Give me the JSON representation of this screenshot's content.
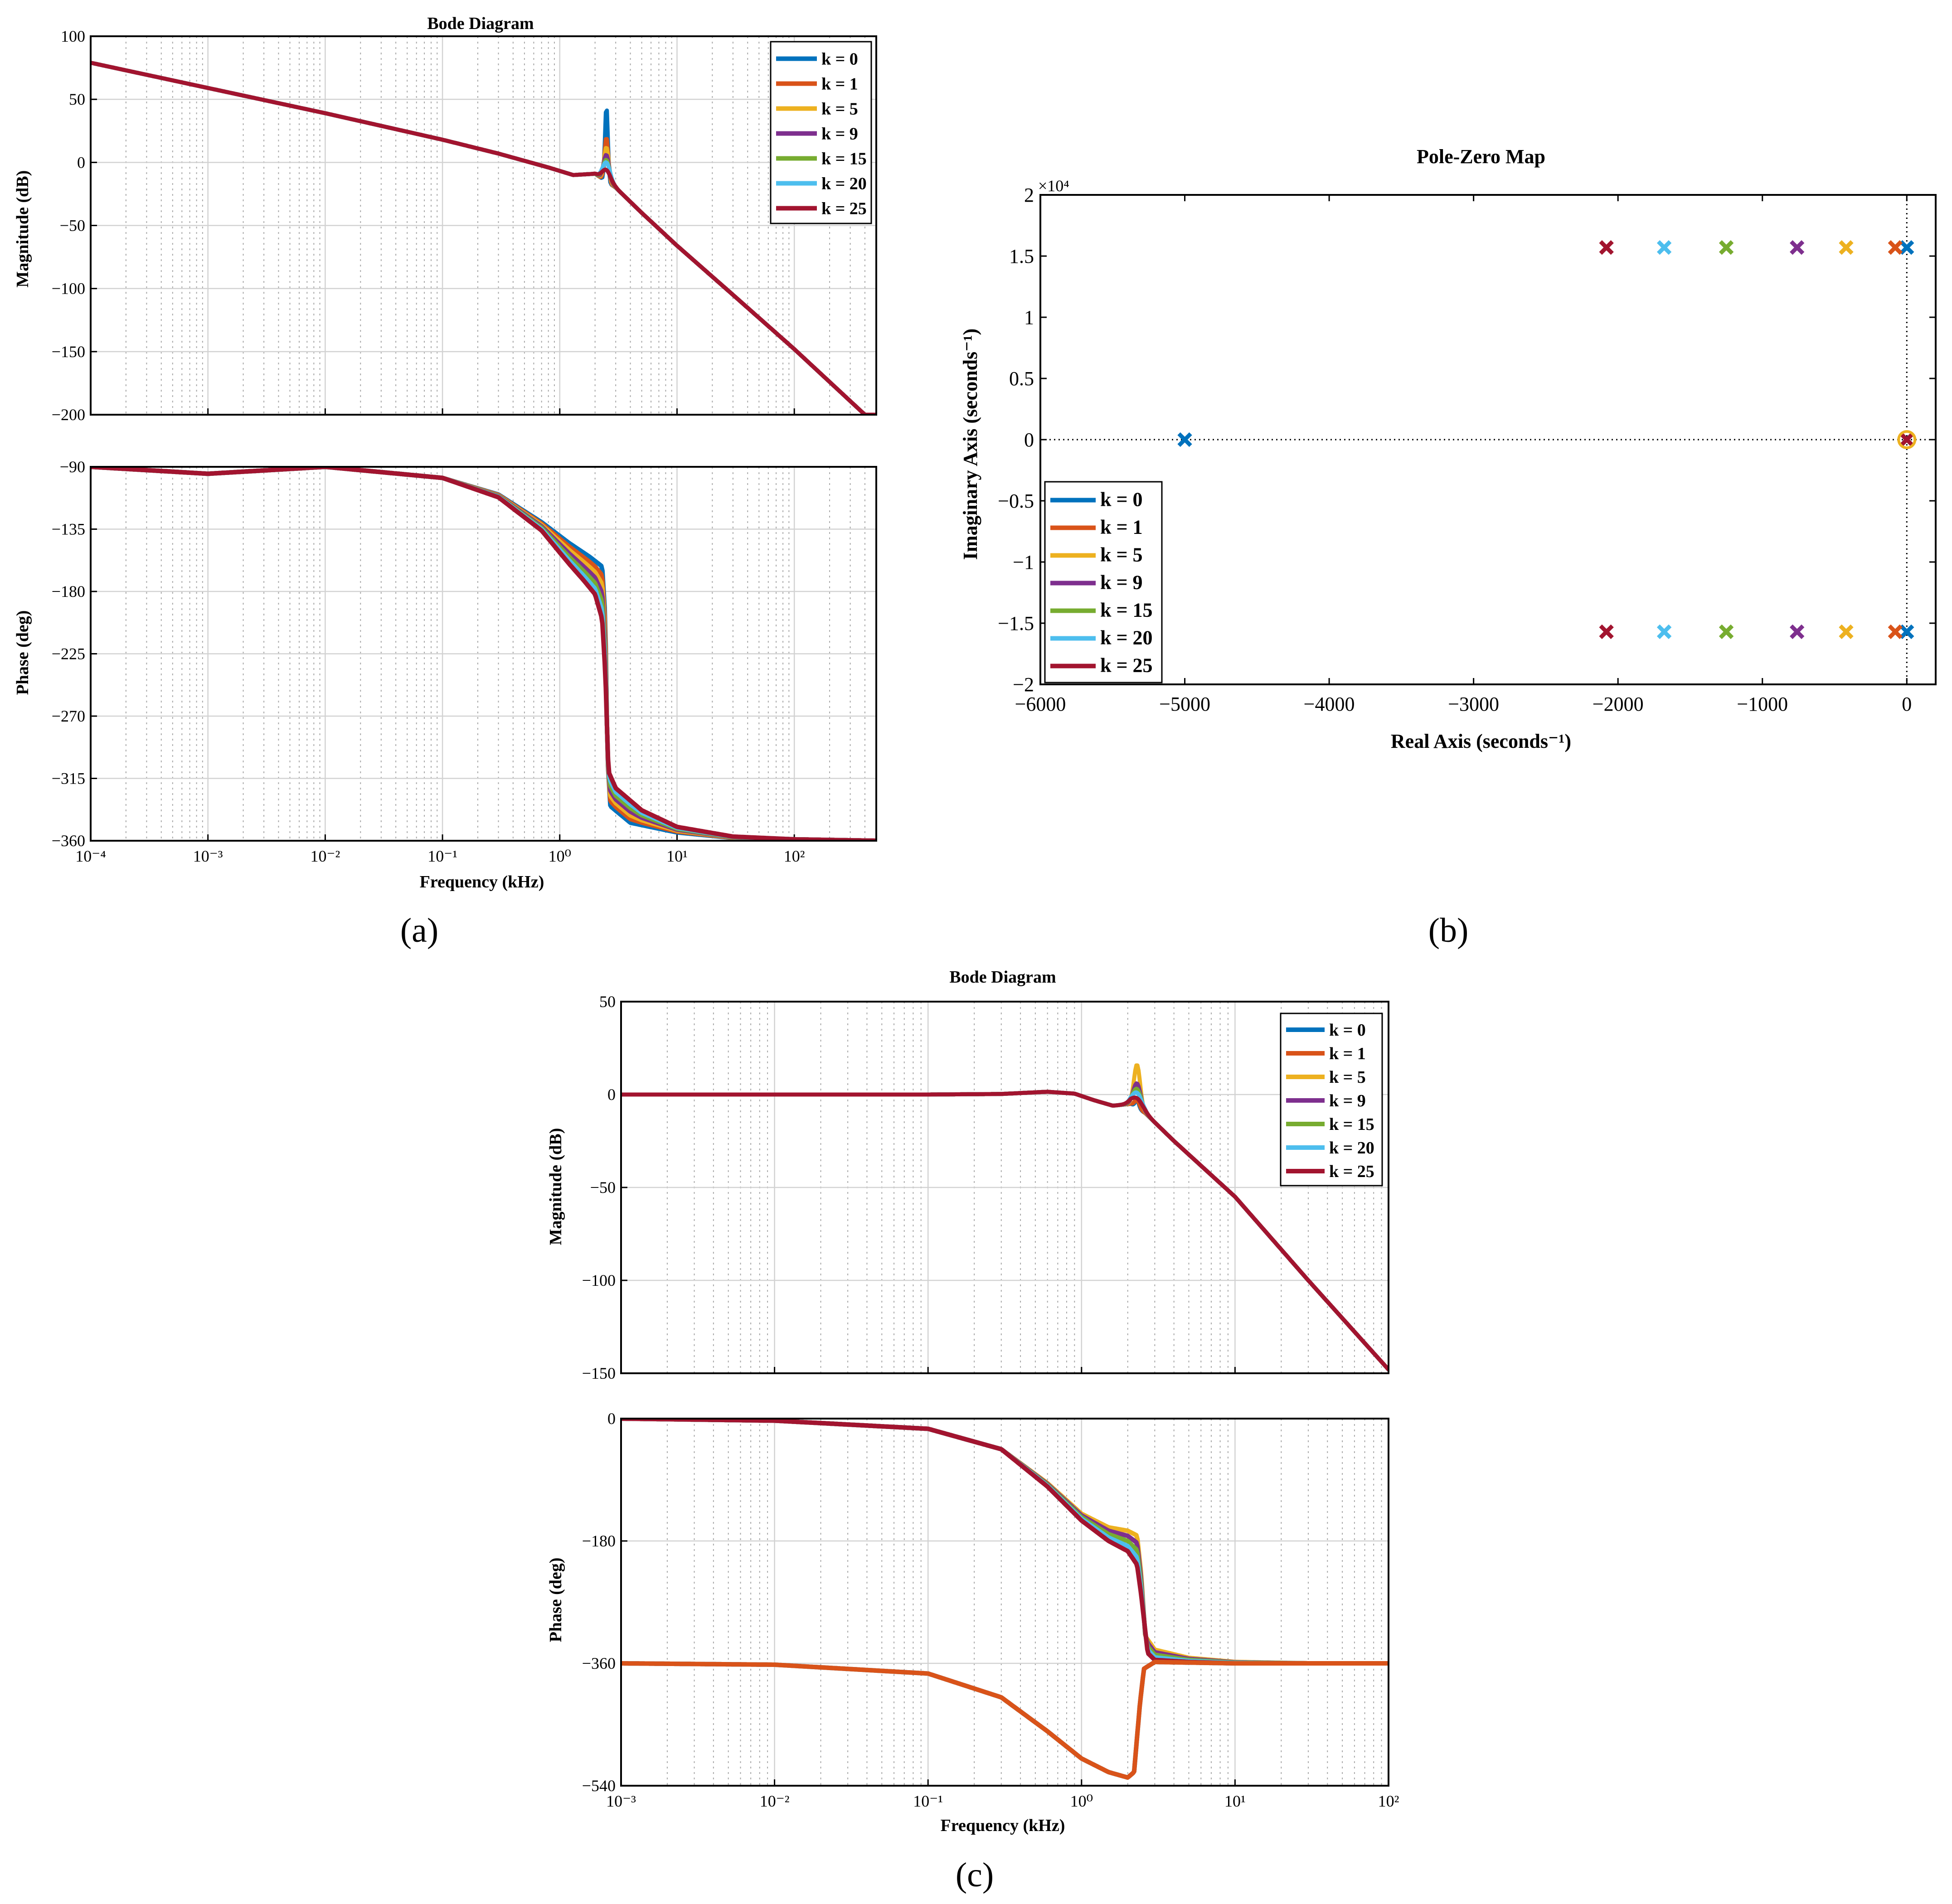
{
  "colors": [
    "#0072bd",
    "#d95319",
    "#edb120",
    "#7e2f8e",
    "#77ac30",
    "#4dbeee",
    "#a2142f"
  ],
  "legend": [
    "k = 0",
    "k = 1",
    "k = 5",
    "k = 9",
    "k = 15",
    "k = 20",
    "k = 25"
  ],
  "panel_labels": {
    "a": "(a)",
    "b": "(b)",
    "c": "(c)"
  },
  "chart_data": [
    {
      "id": "a",
      "type": "line",
      "title": "Bode Diagram",
      "xlabel": "Frequency  (kHz)",
      "xscale": "log",
      "xlim": [
        0.0001,
        500
      ],
      "xticks": [
        0.0001,
        0.001,
        0.01,
        0.1,
        1,
        10,
        100
      ],
      "xtick_labels": [
        "10⁻⁴",
        "10⁻³",
        "10⁻²",
        "10⁻¹",
        "10⁰",
        "10¹",
        "10²"
      ],
      "magnitude": {
        "ylabel": "Magnitude (dB)",
        "ylim": [
          -200,
          100
        ],
        "yticks": [
          100,
          50,
          0,
          -50,
          -100,
          -150,
          -200
        ],
        "ytick_labels": [
          "100",
          "50",
          "0",
          "−50",
          "−100",
          "−150",
          "−200"
        ],
        "base_curve": [
          [
            0.0001,
            79
          ],
          [
            0.001,
            59
          ],
          [
            0.01,
            39
          ],
          [
            0.1,
            18
          ],
          [
            0.3,
            7
          ],
          [
            0.8,
            -4
          ],
          [
            1.3,
            -10
          ],
          [
            2.0,
            -9
          ],
          [
            3.0,
            -20
          ],
          [
            5.0,
            -40
          ],
          [
            10,
            -66
          ],
          [
            30,
            -105
          ],
          [
            100,
            -148
          ],
          [
            400,
            -200
          ]
        ],
        "resonance_khz": 2.5,
        "resonance_peaks_db": [
          45,
          20,
          12,
          6,
          2,
          0,
          -6
        ]
      },
      "phase": {
        "ylabel": "Phase (deg)",
        "ylim": [
          -360,
          -90
        ],
        "yticks": [
          -90,
          -135,
          -180,
          -225,
          -270,
          -315,
          -360
        ],
        "ytick_labels": [
          "−90",
          "−135",
          "−180",
          "−225",
          "−270",
          "−315",
          "−360"
        ],
        "series": {
          "low": [
            [
              0.0001,
              -90
            ],
            [
              0.001,
              -95
            ],
            [
              0.01,
              -90
            ],
            [
              0.1,
              -98
            ],
            [
              0.3,
              -110
            ],
            [
              0.7,
              -130
            ],
            [
              1.2,
              -145
            ],
            [
              1.8,
              -155
            ],
            [
              2.3,
              -162
            ],
            [
              2.45,
              -200
            ],
            [
              2.55,
              -300
            ],
            [
              2.7,
              -335
            ],
            [
              4,
              -347
            ],
            [
              10,
              -354
            ],
            [
              30,
              -358
            ],
            [
              100,
              -359
            ],
            [
              500,
              -360
            ]
          ],
          "high": [
            [
              0.0001,
              -90
            ],
            [
              0.001,
              -95
            ],
            [
              0.01,
              -90
            ],
            [
              0.1,
              -98
            ],
            [
              0.3,
              -112
            ],
            [
              0.7,
              -136
            ],
            [
              1.2,
              -160
            ],
            [
              1.6,
              -172
            ],
            [
              2.0,
              -182
            ],
            [
              2.3,
              -200
            ],
            [
              2.45,
              -240
            ],
            [
              2.6,
              -310
            ],
            [
              3.0,
              -322
            ],
            [
              5,
              -338
            ],
            [
              10,
              -350
            ],
            [
              30,
              -357
            ],
            [
              100,
              -359
            ],
            [
              500,
              -360
            ]
          ]
        }
      }
    },
    {
      "id": "b",
      "type": "scatter",
      "title": "Pole-Zero Map",
      "xlabel": "Real Axis (seconds⁻¹)",
      "ylabel": "Imaginary Axis (seconds⁻¹)",
      "y_multiplier": "×10⁴",
      "xlim": [
        -6000,
        200
      ],
      "ylim": [
        -2,
        2
      ],
      "xticks": [
        -6000,
        -5000,
        -4000,
        -3000,
        -2000,
        -1000,
        0
      ],
      "xtick_labels": [
        "−6000",
        "−5000",
        "−4000",
        "−3000",
        "−2000",
        "−1000",
        "0"
      ],
      "yticks": [
        2,
        1.5,
        1,
        0.5,
        0,
        -0.5,
        -1,
        -1.5,
        -2
      ],
      "ytick_labels": [
        "2",
        "1.5",
        "1",
        "0.5",
        "0",
        "−0.5",
        "−1",
        "−1.5",
        "−2"
      ],
      "poles": [
        {
          "k": 0,
          "points": [
            [
              0,
              1.57
            ],
            [
              0,
              -1.57
            ],
            [
              -5000,
              0
            ],
            [
              0,
              0
            ]
          ]
        },
        {
          "k": 1,
          "points": [
            [
              -80,
              1.57
            ],
            [
              -80,
              -1.57
            ],
            [
              0,
              0
            ]
          ]
        },
        {
          "k": 5,
          "points": [
            [
              -420,
              1.57
            ],
            [
              -420,
              -1.57
            ],
            [
              0,
              0
            ]
          ]
        },
        {
          "k": 9,
          "points": [
            [
              -760,
              1.57
            ],
            [
              -760,
              -1.57
            ],
            [
              0,
              0
            ]
          ]
        },
        {
          "k": 15,
          "points": [
            [
              -1250,
              1.57
            ],
            [
              -1250,
              -1.57
            ],
            [
              0,
              0
            ]
          ]
        },
        {
          "k": 20,
          "points": [
            [
              -1680,
              1.57
            ],
            [
              -1680,
              -1.57
            ],
            [
              0,
              0
            ]
          ]
        },
        {
          "k": 25,
          "points": [
            [
              -2080,
              1.57
            ],
            [
              -2080,
              -1.57
            ],
            [
              0,
              0
            ]
          ]
        }
      ]
    },
    {
      "id": "c",
      "type": "line",
      "title": "Bode Diagram",
      "xlabel": "Frequency  (kHz)",
      "xscale": "log",
      "xlim": [
        0.001,
        100
      ],
      "xticks": [
        0.001,
        0.01,
        0.1,
        1,
        10,
        100
      ],
      "xtick_labels": [
        "10⁻³",
        "10⁻²",
        "10⁻¹",
        "10⁰",
        "10¹",
        "10²"
      ],
      "magnitude": {
        "ylabel": "Magnitude (dB)",
        "ylim": [
          -150,
          50
        ],
        "yticks": [
          50,
          0,
          -50,
          -100,
          -150
        ],
        "ytick_labels": [
          "50",
          "0",
          "−50",
          "−100",
          "−150"
        ],
        "base_curve": [
          [
            0.001,
            0
          ],
          [
            0.01,
            0
          ],
          [
            0.1,
            0
          ],
          [
            0.3,
            0.3
          ],
          [
            0.6,
            1.5
          ],
          [
            0.9,
            0.5
          ],
          [
            1.2,
            -3
          ],
          [
            1.6,
            -6
          ],
          [
            2.1,
            -5
          ],
          [
            2.6,
            -10
          ],
          [
            4,
            -25
          ],
          [
            10,
            -55
          ],
          [
            30,
            -100
          ],
          [
            100,
            -148
          ]
        ],
        "resonance_khz": 2.3,
        "resonance_peaks_db": [
          -3,
          -3,
          16,
          6,
          3,
          1,
          -2
        ]
      },
      "phase": {
        "ylabel": "Phase (deg)",
        "ylim": [
          -540,
          0
        ],
        "yticks": [
          0,
          -180,
          -360,
          -540
        ],
        "ytick_labels": [
          "0",
          "−180",
          "−360",
          "−540"
        ],
        "series": {
          "upper_low": [
            [
              0.001,
              0
            ],
            [
              0.01,
              -3
            ],
            [
              0.1,
              -15
            ],
            [
              0.3,
              -45
            ],
            [
              0.6,
              -95
            ],
            [
              1.0,
              -140
            ],
            [
              1.5,
              -160
            ],
            [
              2.0,
              -165
            ],
            [
              2.3,
              -172
            ],
            [
              2.45,
              -230
            ],
            [
              2.6,
              -320
            ],
            [
              3.0,
              -340
            ],
            [
              5,
              -352
            ],
            [
              10,
              -358
            ],
            [
              30,
              -360
            ],
            [
              100,
              -360
            ]
          ],
          "upper_high": [
            [
              0.001,
              0
            ],
            [
              0.01,
              -3
            ],
            [
              0.1,
              -15
            ],
            [
              0.3,
              -45
            ],
            [
              0.6,
              -100
            ],
            [
              1.0,
              -150
            ],
            [
              1.5,
              -180
            ],
            [
              2.0,
              -195
            ],
            [
              2.3,
              -215
            ],
            [
              2.45,
              -260
            ],
            [
              2.7,
              -345
            ],
            [
              3.0,
              -355
            ],
            [
              5,
              -358
            ],
            [
              10,
              -360
            ],
            [
              30,
              -360
            ],
            [
              100,
              -360
            ]
          ],
          "lower": [
            [
              0.001,
              -360
            ],
            [
              0.01,
              -362
            ],
            [
              0.1,
              -375
            ],
            [
              0.3,
              -410
            ],
            [
              0.6,
              -460
            ],
            [
              1.0,
              -500
            ],
            [
              1.5,
              -520
            ],
            [
              2.0,
              -528
            ],
            [
              2.2,
              -520
            ],
            [
              2.4,
              -420
            ],
            [
              2.55,
              -368
            ],
            [
              3.0,
              -358
            ],
            [
              10,
              -360
            ],
            [
              100,
              -360
            ]
          ]
        }
      }
    }
  ]
}
